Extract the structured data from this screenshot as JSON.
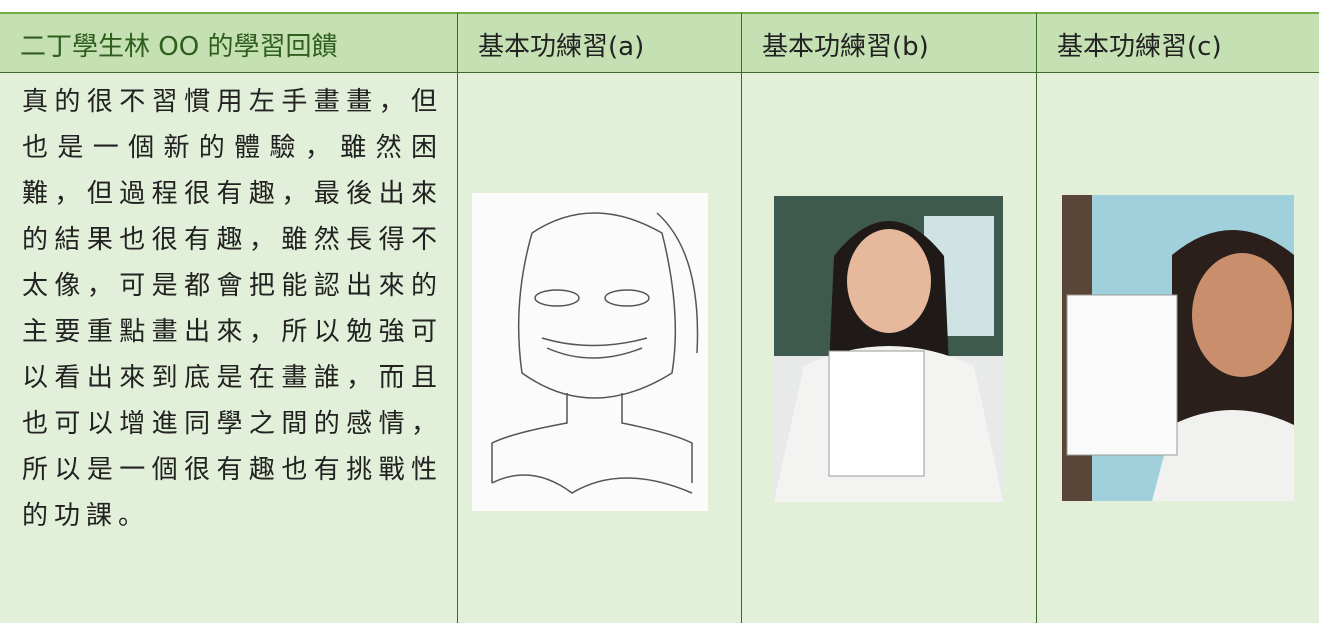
{
  "table": {
    "header": [
      "二丁學生林 OO 的學習回饋",
      "基本功練習(a)",
      "基本功練習(b)",
      "基本功練習(c)"
    ],
    "rows": [
      [
        "真的很不習慣用左手畫畫，但也是一個新的體驗，雖然困難，但過程很有趣，最後出來的結果也很有趣，雖然長得不太像，可是都會把能認出來的主要重點畫出來，所以勉強可以看出來到底是在畫誰，而且也可以增進同學之間的感情，所以是一個很有趣也有挑戰性的功課。"
      ]
    ]
  }
}
